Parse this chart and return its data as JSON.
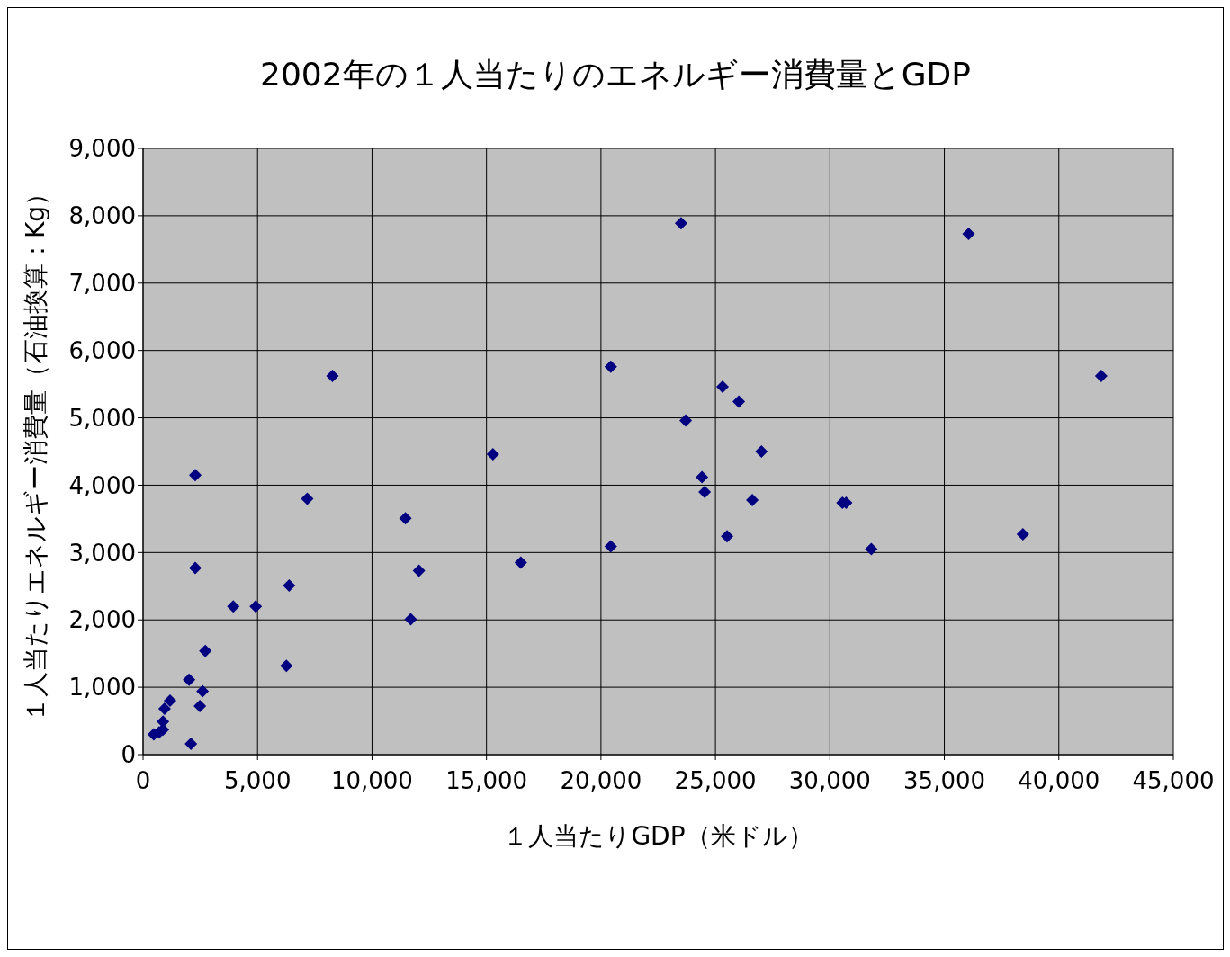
{
  "chart_data": {
    "type": "scatter",
    "title": "2002年の１人当たりのエネルギー消費量とGDP",
    "xlabel": "１人当たりGDP（米ドル）",
    "ylabel": "１人当たりエネルギー消費量（石油換算：Kg）",
    "x": [
      2280,
      7170,
      2280,
      6380,
      3940,
      4920,
      2720,
      6260,
      2010,
      2600,
      1180,
      940,
      2480,
      870,
      870,
      470,
      700,
      2090,
      8270,
      11460,
      12050,
      11690,
      15280,
      16500,
      20430,
      20430,
      23500,
      23700,
      24410,
      24530,
      25310,
      25510,
      26020,
      26610,
      27010,
      30550,
      30710,
      31810,
      36060,
      38430,
      41850
    ],
    "values": [
      4150,
      3800,
      2770,
      2510,
      2200,
      2200,
      1540,
      1320,
      1110,
      940,
      800,
      680,
      720,
      490,
      370,
      300,
      330,
      160,
      5620,
      3510,
      2730,
      2010,
      4460,
      2850,
      5760,
      3090,
      7890,
      4960,
      4120,
      3900,
      5460,
      3240,
      5240,
      3780,
      4500,
      3740,
      3740,
      3050,
      7730,
      3270,
      5620
    ],
    "color": "#000080",
    "marker": "diamond",
    "grid": true,
    "legend": false,
    "xlim": [
      0,
      45000
    ],
    "xticks": [
      0,
      {
        "value": 5000,
        "label": "5,000"
      },
      {
        "value": 10000,
        "label": "10,000"
      },
      {
        "value": 15000,
        "label": "15,000"
      },
      {
        "value": 20000,
        "label": "20,000"
      },
      {
        "value": 25000,
        "label": "25,000"
      },
      {
        "value": 30000,
        "label": "30,000"
      },
      {
        "value": 35000,
        "label": "35,000"
      },
      {
        "value": 40000,
        "label": "40,000"
      },
      {
        "value": 45000,
        "label": "45,000"
      }
    ],
    "ylim": [
      0,
      9000
    ],
    "yticks": [
      0,
      {
        "value": 1000,
        "label": "1,000"
      },
      {
        "value": 2000,
        "label": "2,000"
      },
      {
        "value": 3000,
        "label": "3,000"
      },
      {
        "value": 4000,
        "label": "4,000"
      },
      {
        "value": 5000,
        "label": "5,000"
      },
      {
        "value": 6000,
        "label": "6,000"
      },
      {
        "value": 7000,
        "label": "7,000"
      },
      {
        "value": 8000,
        "label": "8,000"
      },
      {
        "value": 9000,
        "label": "9,000"
      }
    ]
  }
}
